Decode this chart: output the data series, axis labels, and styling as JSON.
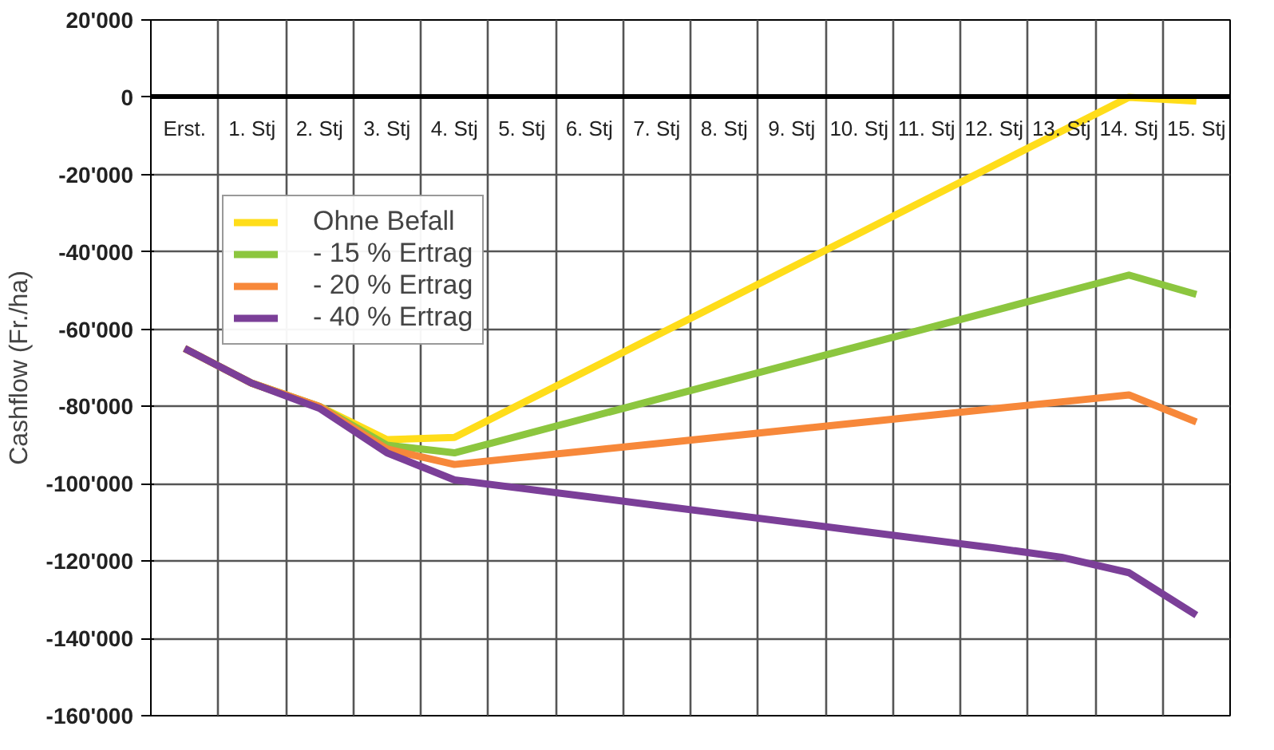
{
  "chart_data": {
    "type": "line",
    "ylabel": "Cashflow (Fr./ha)",
    "categories": [
      "Erst.",
      "1. Stj",
      "2. Stj",
      "3. Stj",
      "4. Stj",
      "5. Stj",
      "6. Stj",
      "7. Stj",
      "8. Stj",
      "9. Stj",
      "10. Stj",
      "11. Stj",
      "12. Stj",
      "13. Stj",
      "14. Stj",
      "15. Stj"
    ],
    "series": [
      {
        "name": "Ohne Befall",
        "color": "#ffdd1a",
        "values": [
          -65000,
          -74000,
          -80000,
          -88600,
          -88000,
          -79200,
          -70400,
          -61600,
          -52800,
          -44000,
          -35200,
          -26400,
          -17600,
          -8800,
          0,
          -1000
        ]
      },
      {
        "name": "- 15 % Ertrag",
        "color": "#8cc63f",
        "values": [
          -65000,
          -74000,
          -80000,
          -90000,
          -92000,
          -87400,
          -82800,
          -78200,
          -73600,
          -69000,
          -64400,
          -59800,
          -55200,
          -50600,
          -46000,
          -51000
        ]
      },
      {
        "name": "- 20 % Ertrag",
        "color": "#f7883a",
        "values": [
          -65000,
          -74000,
          -80000,
          -91000,
          -95000,
          -93200,
          -91400,
          -89600,
          -87800,
          -86000,
          -84200,
          -82400,
          -80600,
          -78800,
          -77000,
          -84000
        ]
      },
      {
        "name": "- 40 % Ertrag",
        "color": "#7b3f98",
        "values": [
          -65000,
          -74000,
          -80500,
          -92000,
          -99000,
          -101200,
          -103400,
          -105600,
          -107800,
          -110000,
          -112200,
          -114400,
          -116600,
          -119000,
          -123000,
          -134000
        ]
      }
    ],
    "ylim": [
      -160000,
      20000
    ],
    "yticks": [
      {
        "value": -160000,
        "label": "-160'000"
      },
      {
        "value": -140000,
        "label": "-140'000"
      },
      {
        "value": -120000,
        "label": "-120'000"
      },
      {
        "value": -100000,
        "label": "-100'000"
      },
      {
        "value": -80000,
        "label": "-80'000"
      },
      {
        "value": -60000,
        "label": "-60'000"
      },
      {
        "value": -40000,
        "label": "-40'000"
      },
      {
        "value": -20000,
        "label": "-20'000"
      },
      {
        "value": 0,
        "label": "0"
      },
      {
        "value": 20000,
        "label": "20'000"
      }
    ],
    "grid": true,
    "legend": "top left",
    "marker": "none",
    "line_style": "solid"
  }
}
